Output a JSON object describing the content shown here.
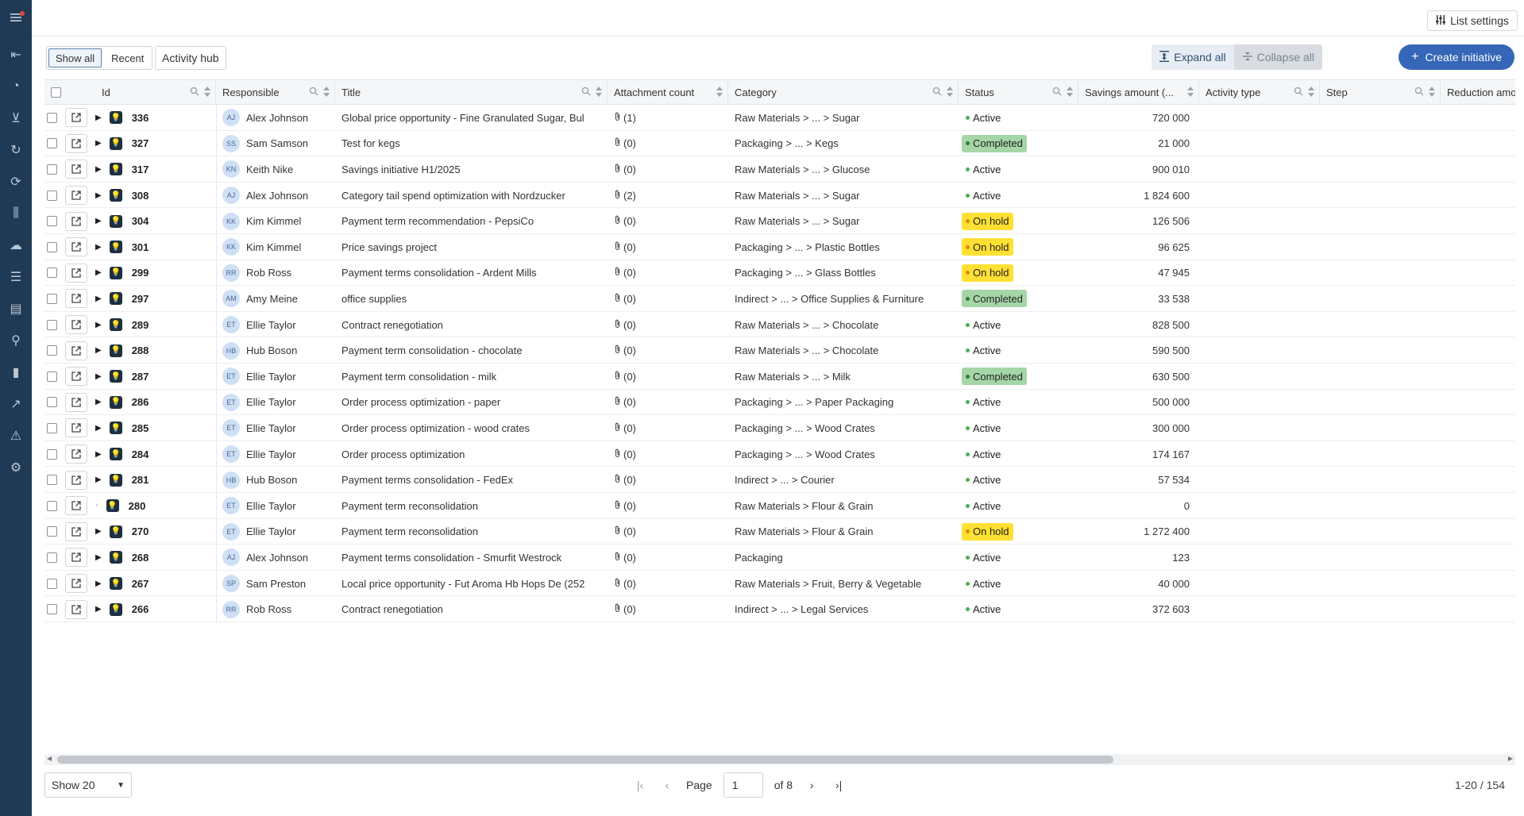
{
  "sidebar": {
    "icons": [
      "sidebar-toggle-icon",
      "dashboard-icon",
      "spend-icon",
      "cart-icon",
      "refresh-icon",
      "cycle-icon",
      "analytics-icon",
      "cloud-icon",
      "contracts-icon",
      "documents-icon",
      "explore-icon",
      "bar-chart-icon",
      "trend-icon",
      "risk-icon",
      "settings-icon"
    ]
  },
  "header": {
    "list_settings": "List settings"
  },
  "toolbar": {
    "tabs": [
      "Show all",
      "Recent"
    ],
    "activity_hub": "Activity hub",
    "expand_all": "Expand all",
    "collapse_all": "Collapse all",
    "create": "Create initiative"
  },
  "columns": [
    "Id",
    "Responsible",
    "Title",
    "Attachment count",
    "Category",
    "Status",
    "Savings amount (...",
    "Activity type",
    "Step",
    "Reduction amou"
  ],
  "status_colors": {
    "Active": "#4caf50",
    "Completed": "#a5d6a7",
    "On hold": "#ffe033"
  },
  "rows": [
    {
      "id": "336",
      "initials": "AJ",
      "responsible": "Alex Johnson",
      "title": "Global price opportunity - Fine Granulated Sugar, Bul",
      "attachments": "(1)",
      "category": "Raw Materials > ... > Sugar",
      "status": "Active",
      "amount": "720 000"
    },
    {
      "id": "327",
      "initials": "SS",
      "responsible": "Sam Samson",
      "title": "Test for kegs",
      "attachments": "(0)",
      "category": "Packaging > ... > Kegs",
      "status": "Completed",
      "amount": "21 000"
    },
    {
      "id": "317",
      "initials": "KN",
      "responsible": "Keith Nike",
      "title": "Savings initiative H1/2025",
      "attachments": "(0)",
      "category": "Raw Materials > ... > Glucose",
      "status": "Active",
      "amount": "900 010"
    },
    {
      "id": "308",
      "initials": "AJ",
      "responsible": "Alex Johnson",
      "title": "Category tail spend optimization with Nordzucker",
      "attachments": "(2)",
      "category": "Raw Materials > ... > Sugar",
      "status": "Active",
      "amount": "1 824 600"
    },
    {
      "id": "304",
      "initials": "KK",
      "responsible": "Kim Kimmel",
      "title": "Payment term recommendation - PepsiCo",
      "attachments": "(0)",
      "category": "Raw Materials > ... > Sugar",
      "status": "On hold",
      "amount": "126 506"
    },
    {
      "id": "301",
      "initials": "KK",
      "responsible": "Kim Kimmel",
      "title": "Price savings project",
      "attachments": "(0)",
      "category": "Packaging > ... > Plastic Bottles",
      "status": "On hold",
      "amount": "96 625"
    },
    {
      "id": "299",
      "initials": "RR",
      "responsible": "Rob Ross",
      "title": "Payment terms consolidation - Ardent Mills",
      "attachments": "(0)",
      "category": "Packaging > ... > Glass Bottles",
      "status": "On hold",
      "amount": "47 945"
    },
    {
      "id": "297",
      "initials": "AM",
      "responsible": "Amy Meine",
      "title": "office supplies",
      "attachments": "(0)",
      "category": "Indirect > ... > Office Supplies & Furniture",
      "status": "Completed",
      "amount": "33 538"
    },
    {
      "id": "289",
      "initials": "ET",
      "responsible": "Ellie Taylor",
      "title": "Contract renegotiation",
      "attachments": "(0)",
      "category": "Raw Materials > ... > Chocolate",
      "status": "Active",
      "amount": "828 500"
    },
    {
      "id": "288",
      "initials": "HB",
      "responsible": "Hub Boson",
      "title": "Payment term consolidation - chocolate",
      "attachments": "(0)",
      "category": "Raw Materials > ... > Chocolate",
      "status": "Active",
      "amount": "590 500"
    },
    {
      "id": "287",
      "initials": "ET",
      "responsible": "Ellie Taylor",
      "title": "Payment term consolidation - milk",
      "attachments": "(0)",
      "category": "Raw Materials > ... > Milk",
      "status": "Completed",
      "amount": "630 500"
    },
    {
      "id": "286",
      "initials": "ET",
      "responsible": "Ellie Taylor",
      "title": "Order process optimization - paper",
      "attachments": "(0)",
      "category": "Packaging > ... > Paper Packaging",
      "status": "Active",
      "amount": "500 000"
    },
    {
      "id": "285",
      "initials": "ET",
      "responsible": "Ellie Taylor",
      "title": "Order process optimization - wood crates",
      "attachments": "(0)",
      "category": "Packaging > ... > Wood Crates",
      "status": "Active",
      "amount": "300 000"
    },
    {
      "id": "284",
      "initials": "ET",
      "responsible": "Ellie Taylor",
      "title": "Order process optimization",
      "attachments": "(0)",
      "category": "Packaging > ... > Wood Crates",
      "status": "Active",
      "amount": "174 167"
    },
    {
      "id": "281",
      "initials": "HB",
      "responsible": "Hub Boson",
      "title": "Payment terms consolidation - FedEx",
      "attachments": "(0)",
      "category": "Indirect > ... > Courier",
      "status": "Active",
      "amount": "57 534"
    },
    {
      "id": "280",
      "initials": "ET",
      "responsible": "Ellie Taylor",
      "title": "Payment term reconsolidation",
      "attachments": "(0)",
      "category": "Raw Materials > Flour & Grain",
      "status": "Active",
      "amount": "0",
      "no_children": true
    },
    {
      "id": "270",
      "initials": "ET",
      "responsible": "Ellie Taylor",
      "title": "Payment term reconsolidation",
      "attachments": "(0)",
      "category": "Raw Materials > Flour & Grain",
      "status": "On hold",
      "amount": "1 272 400"
    },
    {
      "id": "268",
      "initials": "AJ",
      "responsible": "Alex Johnson",
      "title": "Payment terms consolidation - Smurfit Westrock",
      "attachments": "(0)",
      "category": "Packaging",
      "status": "Active",
      "amount": "123"
    },
    {
      "id": "267",
      "initials": "SP",
      "responsible": "Sam Preston",
      "title": "Local price opportunity - Fut Aroma Hb Hops De (252",
      "attachments": "(0)",
      "category": "Raw Materials > Fruit, Berry & Vegetable",
      "status": "Active",
      "amount": "40 000"
    },
    {
      "id": "266",
      "initials": "RR",
      "responsible": "Rob Ross",
      "title": "Contract renegotiation",
      "attachments": "(0)",
      "category": "Indirect > ... > Legal Services",
      "status": "Active",
      "amount": "372 603"
    }
  ],
  "footer": {
    "show": "Show 20",
    "page_label": "Page",
    "page": "1",
    "of": "of 8",
    "range": "1-20 / 154"
  }
}
